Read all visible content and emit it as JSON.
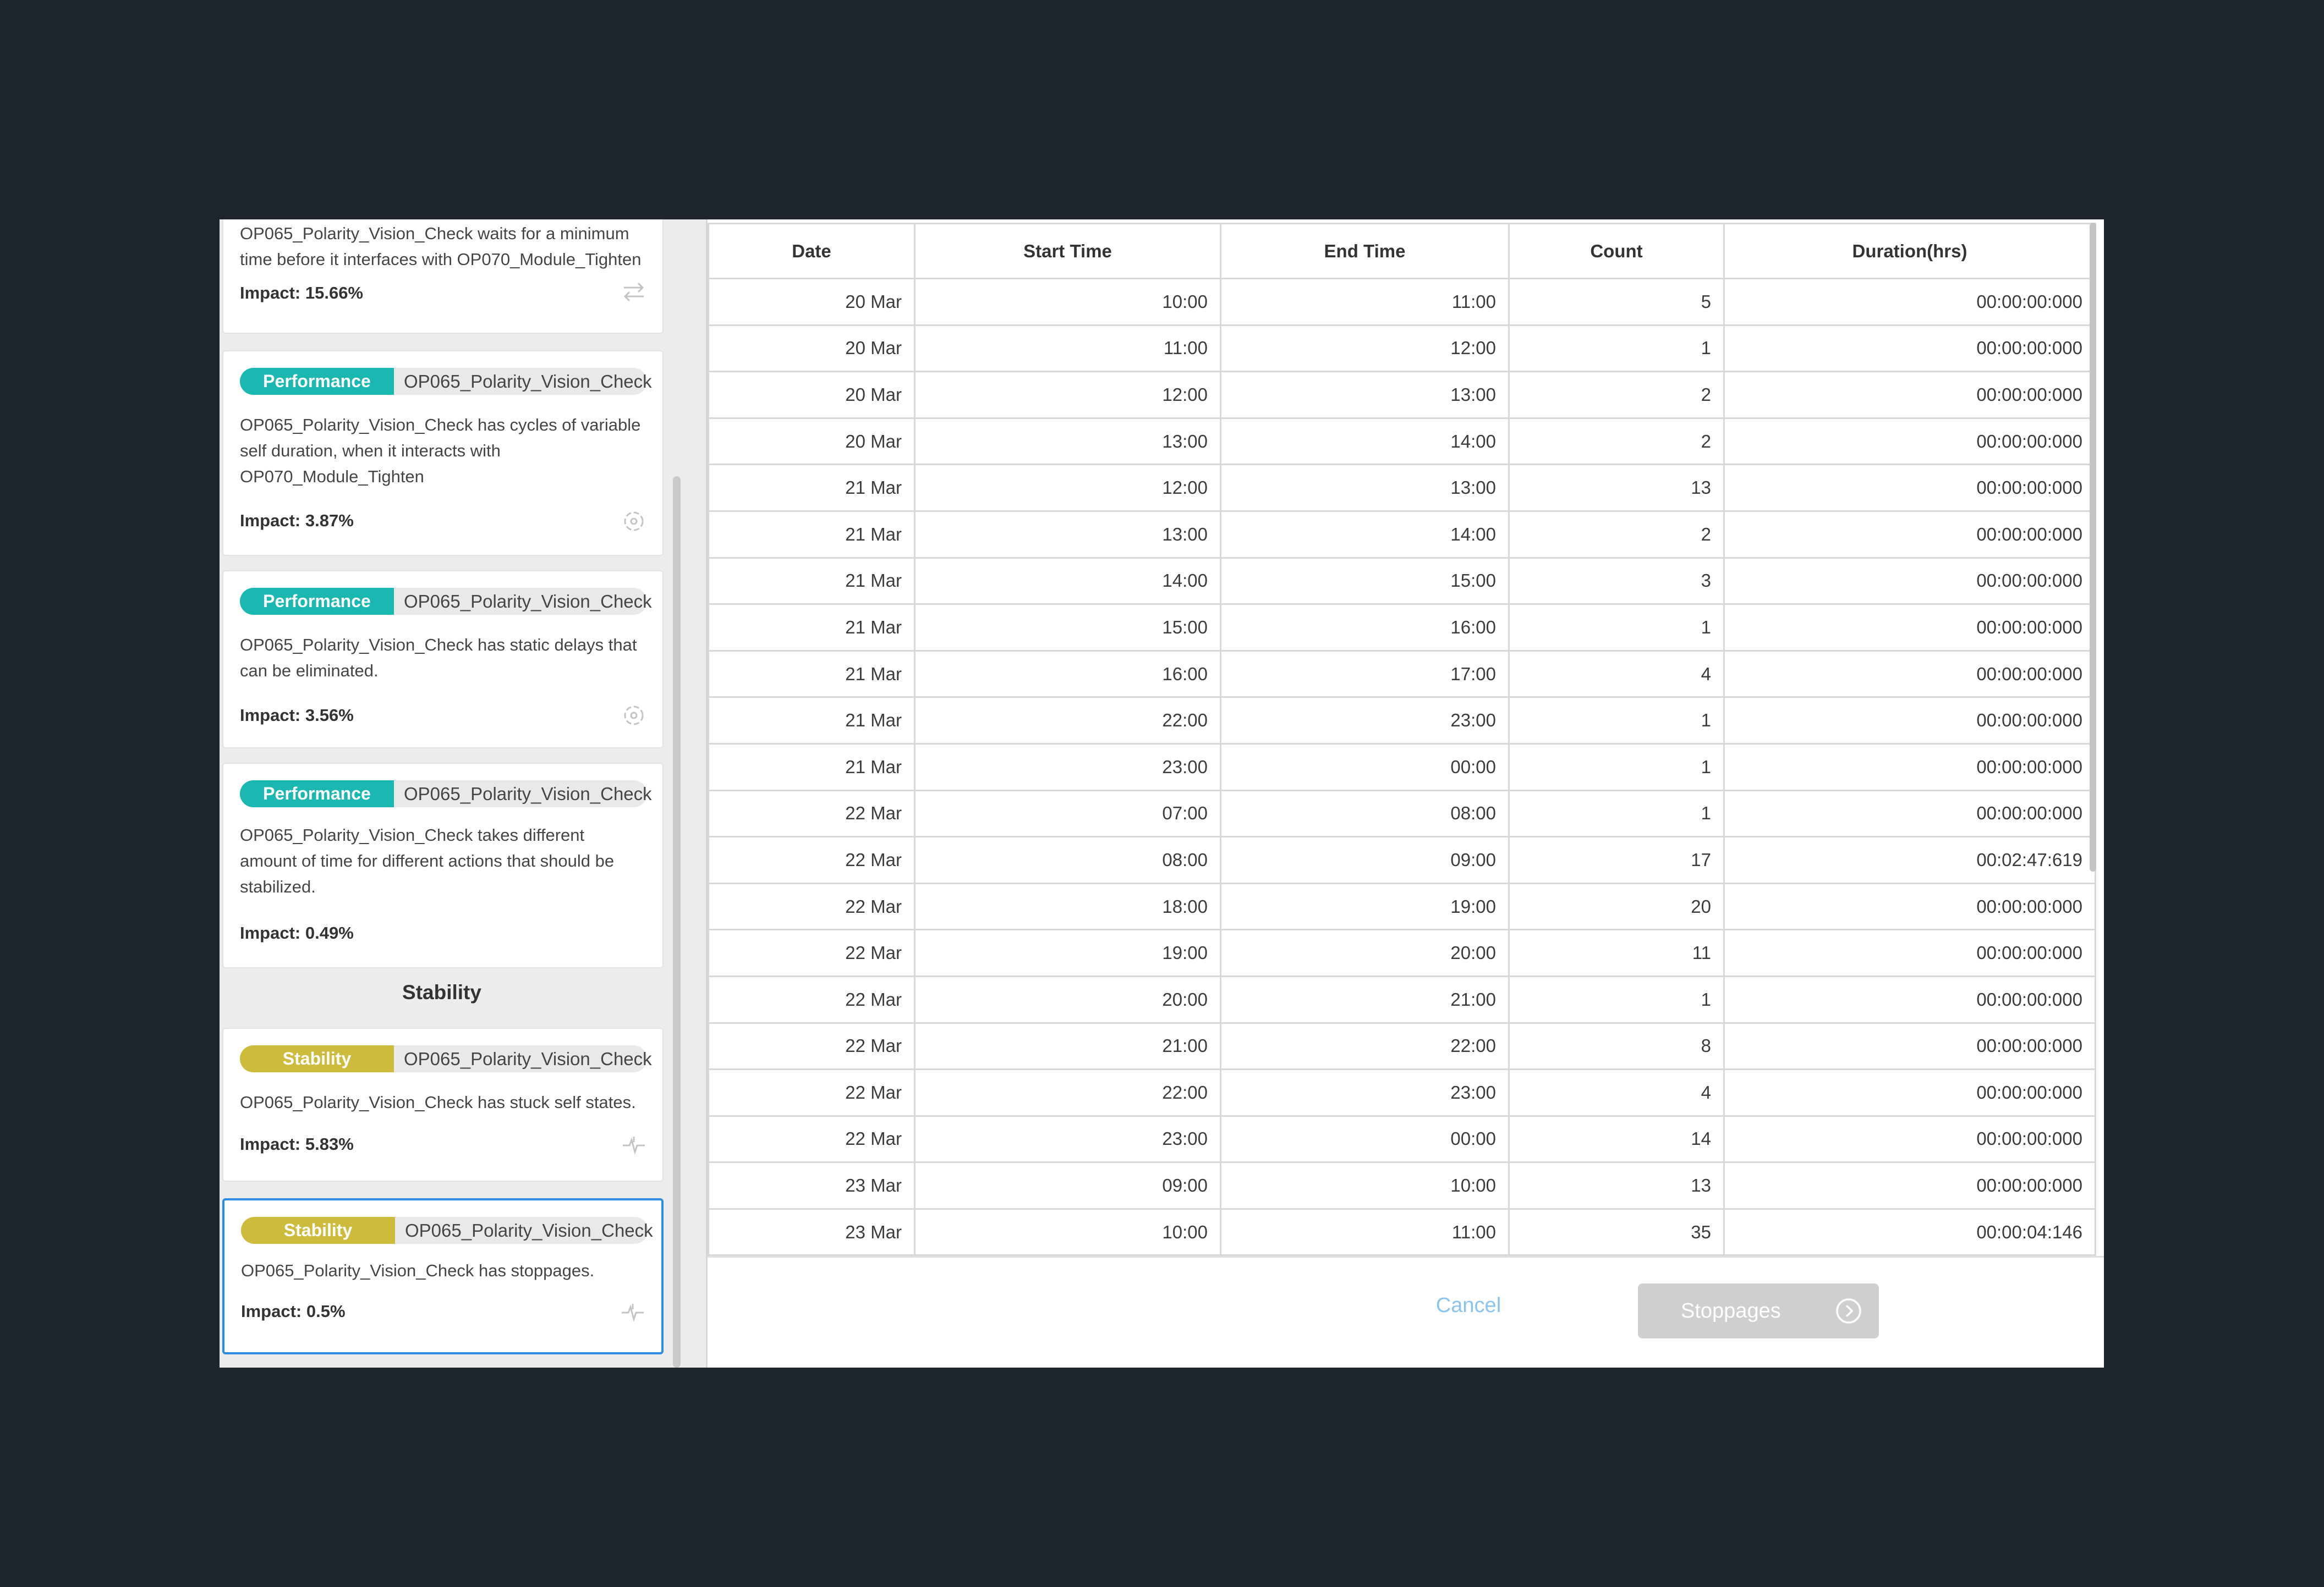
{
  "left_panel": {
    "cards": [
      {
        "category": "",
        "station": "",
        "description_lines": [
          "OP065_Polarity_Vision_Check waits for a minimum",
          "time before it interfaces with OP070_Module_Tighten"
        ],
        "impact": "Impact: 15.66%",
        "icon": "swap-arrows-icon"
      },
      {
        "category": "Performance",
        "station": "OP065_Polarity_Vision_Check",
        "description_lines": [
          "OP065_Polarity_Vision_Check has cycles of variable",
          "self duration, when it interacts with",
          "OP070_Module_Tighten"
        ],
        "impact": "Impact: 3.87%",
        "icon": "target-icon"
      },
      {
        "category": "Performance",
        "station": "OP065_Polarity_Vision_Check",
        "description_lines": [
          "OP065_Polarity_Vision_Check has static delays that",
          "can be eliminated."
        ],
        "impact": "Impact: 3.56%",
        "icon": "target-icon"
      },
      {
        "category": "Performance",
        "station": "OP065_Polarity_Vision_Check",
        "description_lines": [
          "OP065_Polarity_Vision_Check takes different",
          "amount of time for different actions that should be",
          "stabilized."
        ],
        "impact": "Impact: 0.49%",
        "icon": "none"
      },
      {
        "category": "Stability",
        "station": "OP065_Polarity_Vision_Check",
        "description_lines": [
          "OP065_Polarity_Vision_Check has stuck self states."
        ],
        "impact": "Impact: 5.83%",
        "icon": "pulse-icon"
      },
      {
        "category": "Stability",
        "station": "OP065_Polarity_Vision_Check",
        "description_lines": [
          "OP065_Polarity_Vision_Check has stoppages."
        ],
        "impact": "Impact: 0.5%",
        "icon": "pulse-icon"
      }
    ],
    "section_heading": "Stability"
  },
  "table": {
    "headers": [
      "Date",
      "Start Time",
      "End Time",
      "Count",
      "Duration(hrs)"
    ],
    "rows": [
      [
        "20 Mar",
        "10:00",
        "11:00",
        "5",
        "00:00:00:000"
      ],
      [
        "20 Mar",
        "11:00",
        "12:00",
        "1",
        "00:00:00:000"
      ],
      [
        "20 Mar",
        "12:00",
        "13:00",
        "2",
        "00:00:00:000"
      ],
      [
        "20 Mar",
        "13:00",
        "14:00",
        "2",
        "00:00:00:000"
      ],
      [
        "21 Mar",
        "12:00",
        "13:00",
        "13",
        "00:00:00:000"
      ],
      [
        "21 Mar",
        "13:00",
        "14:00",
        "2",
        "00:00:00:000"
      ],
      [
        "21 Mar",
        "14:00",
        "15:00",
        "3",
        "00:00:00:000"
      ],
      [
        "21 Mar",
        "15:00",
        "16:00",
        "1",
        "00:00:00:000"
      ],
      [
        "21 Mar",
        "16:00",
        "17:00",
        "4",
        "00:00:00:000"
      ],
      [
        "21 Mar",
        "22:00",
        "23:00",
        "1",
        "00:00:00:000"
      ],
      [
        "21 Mar",
        "23:00",
        "00:00",
        "1",
        "00:00:00:000"
      ],
      [
        "22 Mar",
        "07:00",
        "08:00",
        "1",
        "00:00:00:000"
      ],
      [
        "22 Mar",
        "08:00",
        "09:00",
        "17",
        "00:02:47:619"
      ],
      [
        "22 Mar",
        "18:00",
        "19:00",
        "20",
        "00:00:00:000"
      ],
      [
        "22 Mar",
        "19:00",
        "20:00",
        "11",
        "00:00:00:000"
      ],
      [
        "22 Mar",
        "20:00",
        "21:00",
        "1",
        "00:00:00:000"
      ],
      [
        "22 Mar",
        "21:00",
        "22:00",
        "8",
        "00:00:00:000"
      ],
      [
        "22 Mar",
        "22:00",
        "23:00",
        "4",
        "00:00:00:000"
      ],
      [
        "22 Mar",
        "23:00",
        "00:00",
        "14",
        "00:00:00:000"
      ],
      [
        "23 Mar",
        "09:00",
        "10:00",
        "13",
        "00:00:00:000"
      ],
      [
        "23 Mar",
        "10:00",
        "11:00",
        "35",
        "00:00:04:146"
      ]
    ]
  },
  "footer": {
    "cancel_label": "Cancel",
    "stoppages_label": "Stoppages"
  },
  "colors": {
    "performance": "#1ab8b0",
    "stability": "#cdbb3c",
    "selected_border": "#2d8ce0",
    "cancel_text": "#8bc4ec",
    "disabled_button": "#cfcfcf"
  }
}
